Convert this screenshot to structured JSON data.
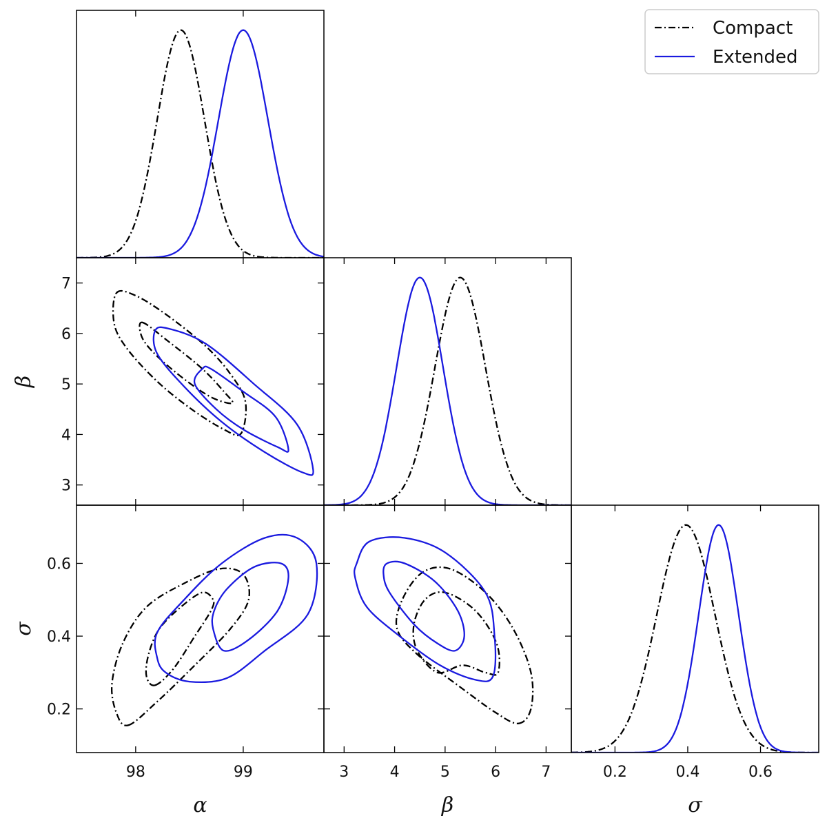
{
  "chart_data": {
    "type": "corner",
    "parameters": [
      {
        "key": "alpha",
        "label": "α",
        "range": [
          97.45,
          99.75
        ],
        "ticks": [
          98,
          99
        ],
        "tick_labels": [
          "98",
          "99"
        ]
      },
      {
        "key": "beta",
        "label": "β",
        "range": [
          2.6,
          7.5
        ],
        "ticks": [
          3,
          4,
          5,
          6,
          7
        ],
        "tick_labels": [
          "3",
          "4",
          "5",
          "6",
          "7"
        ]
      },
      {
        "key": "sigma",
        "label": "σ",
        "range": [
          0.08,
          0.76
        ],
        "ticks": [
          0.2,
          0.4,
          0.6
        ],
        "tick_labels": [
          "0.2",
          "0.4",
          "0.6"
        ]
      }
    ],
    "legend": {
      "position": "top-right",
      "entries": [
        "Compact",
        "Extended"
      ]
    },
    "series": [
      {
        "name": "Compact",
        "color": "#000000",
        "line_style": "dash-dot",
        "marginals": {
          "alpha": {
            "mean": 98.42,
            "sd": 0.22
          },
          "beta": {
            "mean": 5.3,
            "sd": 0.5
          },
          "sigma": {
            "mean": 0.395,
            "sd": 0.08
          }
        },
        "contours": {
          "alpha-beta": [
            {
              "level": "68%",
              "points": [
                [
                  98.06,
                  6.22
                ],
                [
                  98.3,
                  5.85
                ],
                [
                  98.62,
                  5.3
                ],
                [
                  98.82,
                  4.85
                ],
                [
                  98.9,
                  4.62
                ],
                [
                  98.72,
                  4.72
                ],
                [
                  98.48,
                  5.05
                ],
                [
                  98.2,
                  5.55
                ],
                [
                  98.06,
                  5.92
                ]
              ]
            },
            {
              "level": "95%",
              "points": [
                [
                  97.82,
                  6.8
                ],
                [
                  98.0,
                  6.75
                ],
                [
                  98.3,
                  6.35
                ],
                [
                  98.65,
                  5.75
                ],
                [
                  98.88,
                  5.2
                ],
                [
                  99.02,
                  4.65
                ],
                [
                  98.98,
                  4.02
                ],
                [
                  98.82,
                  4.1
                ],
                [
                  98.52,
                  4.5
                ],
                [
                  98.2,
                  5.05
                ],
                [
                  97.92,
                  5.7
                ],
                [
                  97.8,
                  6.2
                ]
              ]
            }
          ],
          "alpha-sigma": [
            {
              "level": "68%",
              "points": [
                [
                  98.18,
                  0.265
                ],
                [
                  98.35,
                  0.31
                ],
                [
                  98.55,
                  0.4
                ],
                [
                  98.7,
                  0.47
                ],
                [
                  98.72,
                  0.5
                ],
                [
                  98.62,
                  0.52
                ],
                [
                  98.42,
                  0.48
                ],
                [
                  98.22,
                  0.42
                ],
                [
                  98.12,
                  0.35
                ],
                [
                  98.1,
                  0.29
                ]
              ]
            },
            {
              "level": "95%",
              "points": [
                [
                  97.93,
                  0.155
                ],
                [
                  98.2,
                  0.22
                ],
                [
                  98.55,
                  0.32
                ],
                [
                  98.88,
                  0.42
                ],
                [
                  99.05,
                  0.5
                ],
                [
                  99.0,
                  0.57
                ],
                [
                  98.78,
                  0.585
                ],
                [
                  98.45,
                  0.545
                ],
                [
                  98.1,
                  0.48
                ],
                [
                  97.88,
                  0.38
                ],
                [
                  97.78,
                  0.27
                ],
                [
                  97.82,
                  0.19
                ]
              ]
            }
          ],
          "beta-sigma": [
            {
              "level": "68%",
              "points": [
                [
                  4.85,
                  0.3
                ],
                [
                  5.35,
                  0.32
                ],
                [
                  5.8,
                  0.3
                ],
                [
                  6.05,
                  0.3
                ],
                [
                  6.02,
                  0.38
                ],
                [
                  5.6,
                  0.47
                ],
                [
                  5.0,
                  0.52
                ],
                [
                  4.6,
                  0.5
                ],
                [
                  4.38,
                  0.43
                ],
                [
                  4.45,
                  0.36
                ]
              ]
            },
            {
              "level": "95%",
              "points": [
                [
                  6.45,
                  0.16
                ],
                [
                  6.7,
                  0.2
                ],
                [
                  6.7,
                  0.3
                ],
                [
                  6.35,
                  0.42
                ],
                [
                  5.8,
                  0.52
                ],
                [
                  5.1,
                  0.585
                ],
                [
                  4.55,
                  0.575
                ],
                [
                  4.15,
                  0.5
                ],
                [
                  4.05,
                  0.42
                ],
                [
                  4.45,
                  0.35
                ],
                [
                  5.3,
                  0.26
                ],
                [
                  6.0,
                  0.19
                ]
              ]
            }
          ]
        }
      },
      {
        "name": "Extended",
        "color": "#1a1adf",
        "line_style": "solid",
        "marginals": {
          "alpha": {
            "mean": 99.0,
            "sd": 0.23
          },
          "beta": {
            "mean": 4.5,
            "sd": 0.46
          },
          "sigma": {
            "mean": 0.485,
            "sd": 0.055
          }
        },
        "contours": {
          "alpha-beta": [
            {
              "level": "68%",
              "points": [
                [
                  98.62,
                  5.3
                ],
                [
                  98.7,
                  5.3
                ],
                [
                  99.0,
                  4.85
                ],
                [
                  99.3,
                  4.35
                ],
                [
                  99.42,
                  3.7
                ],
                [
                  99.32,
                  3.75
                ],
                [
                  99.0,
                  4.1
                ],
                [
                  98.75,
                  4.5
                ],
                [
                  98.55,
                  5.0
                ]
              ]
            },
            {
              "level": "95%",
              "points": [
                [
                  98.18,
                  6.05
                ],
                [
                  98.3,
                  6.1
                ],
                [
                  98.65,
                  5.8
                ],
                [
                  99.1,
                  5.0
                ],
                [
                  99.5,
                  4.2
                ],
                [
                  99.65,
                  3.3
                ],
                [
                  99.55,
                  3.25
                ],
                [
                  99.2,
                  3.65
                ],
                [
                  98.8,
                  4.25
                ],
                [
                  98.45,
                  4.95
                ],
                [
                  98.2,
                  5.6
                ]
              ]
            }
          ],
          "alpha-sigma": [
            {
              "level": "68%",
              "points": [
                [
                  98.72,
                  0.42
                ],
                [
                  98.82,
                  0.36
                ],
                [
                  99.05,
                  0.39
                ],
                [
                  99.32,
                  0.47
                ],
                [
                  99.42,
                  0.56
                ],
                [
                  99.35,
                  0.6
                ],
                [
                  99.1,
                  0.59
                ],
                [
                  98.85,
                  0.53
                ],
                [
                  98.73,
                  0.47
                ]
              ]
            },
            {
              "level": "95%",
              "points": [
                [
                  98.2,
                  0.34
                ],
                [
                  98.28,
                  0.3
                ],
                [
                  98.5,
                  0.275
                ],
                [
                  98.85,
                  0.285
                ],
                [
                  99.2,
                  0.36
                ],
                [
                  99.6,
                  0.46
                ],
                [
                  99.68,
                  0.6
                ],
                [
                  99.5,
                  0.67
                ],
                [
                  99.2,
                  0.67
                ],
                [
                  98.8,
                  0.6
                ],
                [
                  98.45,
                  0.5
                ],
                [
                  98.2,
                  0.41
                ]
              ]
            }
          ],
          "beta-sigma": [
            {
              "level": "68%",
              "points": [
                [
                  3.85,
                  0.6
                ],
                [
                  4.2,
                  0.6
                ],
                [
                  4.8,
                  0.55
                ],
                [
                  5.25,
                  0.47
                ],
                [
                  5.38,
                  0.4
                ],
                [
                  5.2,
                  0.36
                ],
                [
                  4.85,
                  0.38
                ],
                [
                  4.4,
                  0.43
                ],
                [
                  3.9,
                  0.52
                ],
                [
                  3.78,
                  0.57
                ]
              ]
            },
            {
              "level": "95%",
              "points": [
                [
                  3.25,
                  0.6
                ],
                [
                  3.5,
                  0.66
                ],
                [
                  4.2,
                  0.67
                ],
                [
                  5.0,
                  0.63
                ],
                [
                  5.8,
                  0.52
                ],
                [
                  5.98,
                  0.4
                ],
                [
                  5.95,
                  0.29
                ],
                [
                  5.6,
                  0.28
                ],
                [
                  4.9,
                  0.32
                ],
                [
                  4.1,
                  0.4
                ],
                [
                  3.45,
                  0.48
                ],
                [
                  3.22,
                  0.56
                ]
              ]
            }
          ]
        }
      }
    ]
  }
}
